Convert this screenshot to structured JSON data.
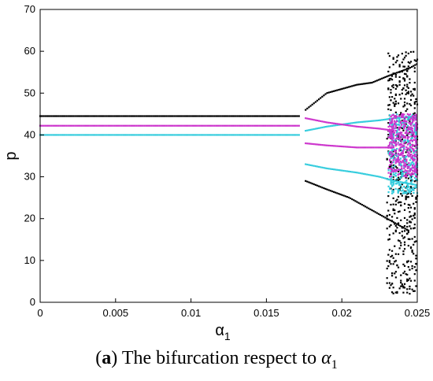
{
  "caption": {
    "letter": "a",
    "text": " The bifurcation respect to ",
    "symbol": "α",
    "subscript": "1"
  },
  "chart_data": {
    "type": "scatter",
    "title": "",
    "xlabel": "α",
    "xlabel_subscript": "1",
    "ylabel": "p",
    "xlim": [
      0,
      0.025
    ],
    "ylim": [
      0,
      70
    ],
    "xticks": [
      "0",
      "0.005",
      "0.01",
      "0.015",
      "0.02",
      "0.025"
    ],
    "yticks": [
      "0",
      "10",
      "20",
      "30",
      "40",
      "50",
      "60",
      "70"
    ],
    "grid": false,
    "colors": {
      "black": "#000000",
      "magenta": "#cc33cc",
      "cyan": "#33ccdd"
    },
    "series": [
      {
        "color": "black",
        "branches": [
          {
            "x": [
              0,
              0.0172
            ],
            "y": [
              44.5,
              44.5
            ]
          },
          {
            "x": [
              0.0176,
              0.019,
              0.021,
              0.022,
              0.023,
              0.0245,
              0.025
            ],
            "y": [
              46,
              50,
              52,
              52.5,
              54,
              56,
              57
            ]
          },
          {
            "x": [
              0.0176,
              0.019,
              0.0205,
              0.022,
              0.023,
              0.0245
            ],
            "y": [
              29,
              27,
              25,
              22,
              20,
              17
            ]
          }
        ],
        "scatter_ranges": [
          {
            "x": [
              0.023,
              0.025
            ],
            "y": [
              2,
              60
            ]
          }
        ]
      },
      {
        "color": "magenta",
        "branches": [
          {
            "x": [
              0,
              0.0172
            ],
            "y": [
              42.2,
              42.2
            ]
          },
          {
            "x": [
              0.0176,
              0.019,
              0.021,
              0.0225,
              0.0235
            ],
            "y": [
              44,
              43,
              42,
              41.5,
              41
            ]
          },
          {
            "x": [
              0.0176,
              0.019,
              0.021,
              0.0225,
              0.0235
            ],
            "y": [
              38,
              37.5,
              37,
              37,
              37
            ]
          }
        ],
        "scatter_ranges": [
          {
            "x": [
              0.0231,
              0.025
            ],
            "y": [
              30,
              45
            ]
          }
        ]
      },
      {
        "color": "cyan",
        "branches": [
          {
            "x": [
              0,
              0.0172
            ],
            "y": [
              40.0,
              40.0
            ]
          },
          {
            "x": [
              0.0176,
              0.019,
              0.021,
              0.0225,
              0.0235,
              0.025
            ],
            "y": [
              41,
              42,
              43,
              43.5,
              44,
              44.5
            ]
          },
          {
            "x": [
              0.0176,
              0.019,
              0.021,
              0.0225,
              0.0235,
              0.025
            ],
            "y": [
              33,
              32,
              31,
              30,
              29,
              28
            ]
          }
        ],
        "scatter_ranges": [
          {
            "x": [
              0.0231,
              0.025
            ],
            "y": [
              26,
              45
            ]
          }
        ]
      }
    ]
  }
}
